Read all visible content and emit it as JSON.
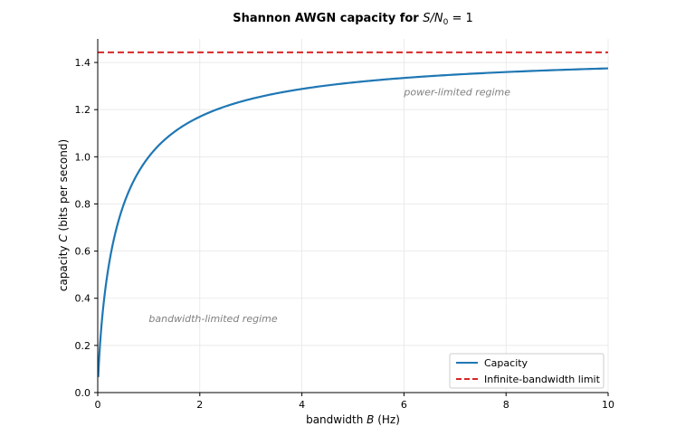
{
  "chart_data": {
    "type": "line",
    "title_prefix": "Shannon AWGN capacity for ",
    "title_math": "S/N",
    "title_math_sub": "0",
    "title_math_suffix": " = 1",
    "xlabel_prefix": "bandwidth ",
    "xlabel_var": "B",
    "xlabel_suffix": " (Hz)",
    "ylabel_prefix": "capacity ",
    "ylabel_var": "C",
    "ylabel_suffix": " (bits per second)",
    "xlim": [
      0,
      10
    ],
    "ylim": [
      0,
      1.5
    ],
    "xticks": [
      0,
      2,
      4,
      6,
      8,
      10
    ],
    "xtick_labels": [
      "0",
      "2",
      "4",
      "6",
      "8",
      "10"
    ],
    "yticks": [
      0,
      0.2,
      0.4,
      0.6,
      0.8,
      1.0,
      1.2,
      1.4
    ],
    "ytick_labels": [
      "0.0",
      "0.2",
      "0.4",
      "0.6",
      "0.8",
      "1.0",
      "1.2",
      "1.4"
    ],
    "grid": true,
    "series": [
      {
        "name": "Capacity",
        "color": "#1f77b4",
        "style": "solid",
        "function": "B*log2(1+1/B)",
        "x_range": [
          0.01,
          10
        ]
      },
      {
        "name": "Infinite-bandwidth limit",
        "color": "#d62728",
        "style": "dashed",
        "value": 1.4427
      }
    ],
    "annotations": [
      {
        "text": "power-limited regime",
        "x": 6.0,
        "y": 1.26
      },
      {
        "text": "bandwidth-limited regime",
        "x": 1.0,
        "y": 0.3
      }
    ],
    "legend": {
      "position": "lower-right",
      "entries": [
        "Capacity",
        "Infinite-bandwidth limit"
      ]
    }
  }
}
